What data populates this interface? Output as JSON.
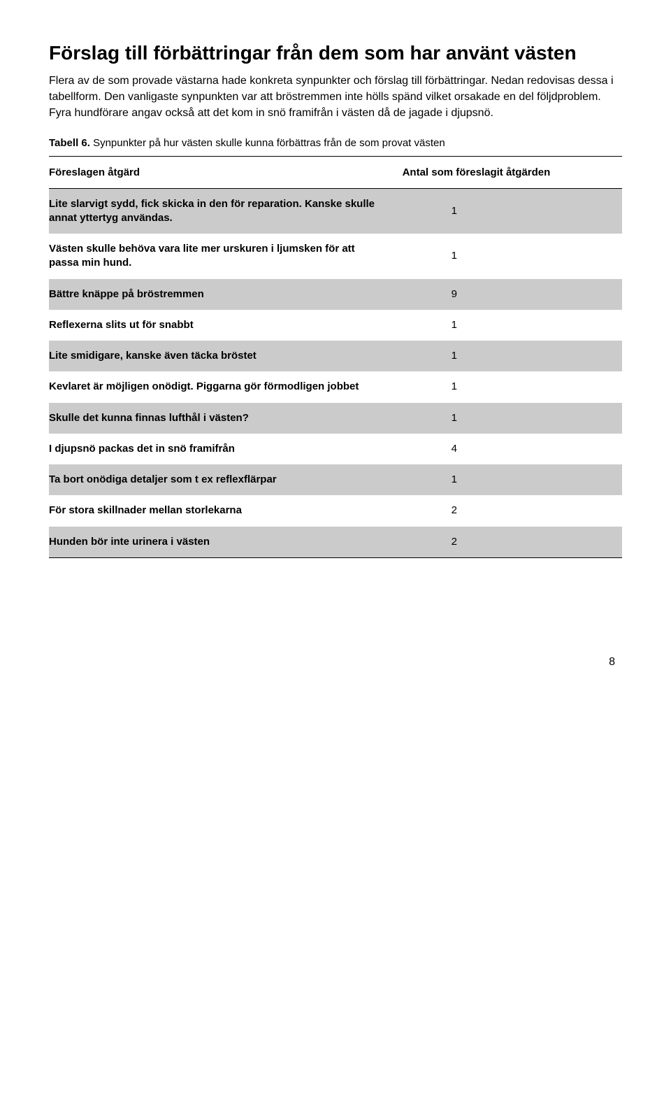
{
  "heading": "Förslag till förbättringar från dem som har använt västen",
  "intro": "Flera av de som provade västarna hade konkreta synpunkter och förslag till förbättringar. Nedan redovisas dessa i tabellform. Den vanligaste synpunkten var att bröstremmen inte hölls spänd vilket orsakade en del följdproblem. Fyra hundförare angav också att det kom in snö framifrån i västen då de jagade i djupsnö.",
  "table_label": "Tabell 6.",
  "table_caption_rest": " Synpunkter på hur västen skulle kunna förbättras från de som provat västen",
  "col1_header": "Föreslagen åtgärd",
  "col2_header": "Antal som föreslagit åtgärden",
  "rows": [
    {
      "text": "Lite slarvigt sydd, fick skicka in den för reparation. Kanske skulle annat yttertyg användas.",
      "count": "1",
      "grey": true
    },
    {
      "text": "Västen skulle behöva vara lite mer urskuren i ljumsken för att passa min hund.",
      "count": "1",
      "grey": false
    },
    {
      "text": "Bättre knäppe på bröstremmen",
      "count": "9",
      "grey": true
    },
    {
      "text": "Reflexerna slits ut för snabbt",
      "count": "1",
      "grey": false
    },
    {
      "text": "Lite smidigare, kanske även täcka bröstet",
      "count": "1",
      "grey": true
    },
    {
      "text": "Kevlaret är möjligen onödigt. Piggarna gör förmodligen jobbet",
      "count": "1",
      "grey": false
    },
    {
      "text": "Skulle det kunna finnas lufthål i västen?",
      "count": "1",
      "grey": true
    },
    {
      "text": "I djupsnö packas det in snö framifrån",
      "count": "4",
      "grey": false
    },
    {
      "text": "Ta bort onödiga detaljer som t ex reflexflärpar",
      "count": "1",
      "grey": true
    },
    {
      "text": "För stora skillnader mellan storlekarna",
      "count": "2",
      "grey": false
    },
    {
      "text": "Hunden bör inte urinera i västen",
      "count": "2",
      "grey": true
    }
  ],
  "page_number": "8",
  "colors": {
    "grey_row": "#cbcbcb",
    "bg": "#ffffff",
    "text": "#000000"
  }
}
